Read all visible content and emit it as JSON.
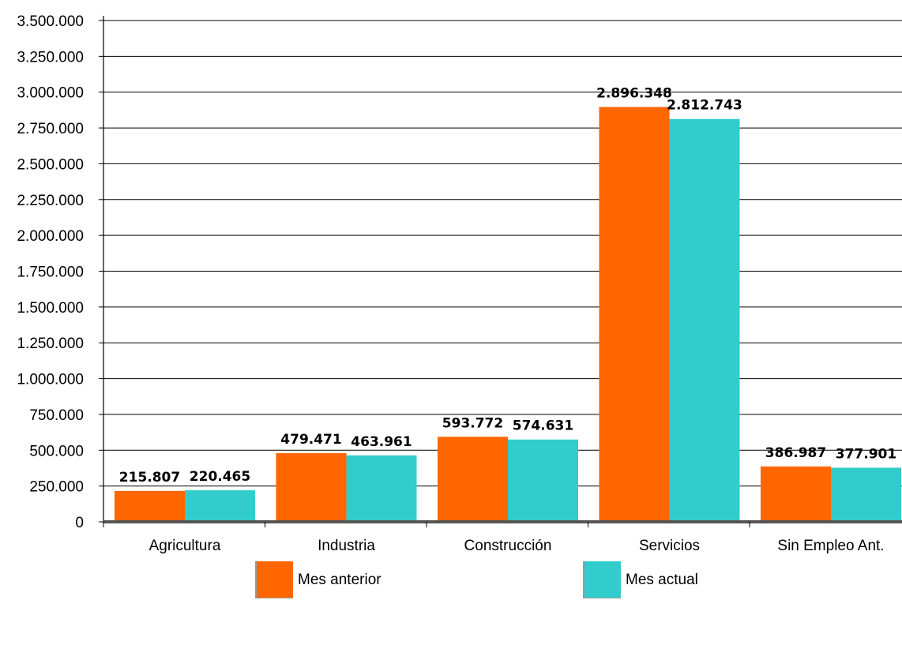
{
  "chart_data": {
    "type": "bar",
    "categories": [
      "Agricultura",
      "Industria",
      "Construcción",
      "Servicios",
      "Sin Empleo Ant."
    ],
    "series": [
      {
        "name": "Mes anterior",
        "color": "#ff6600",
        "values": [
          215807,
          479471,
          593772,
          2896348,
          386987
        ],
        "labels": [
          "215.807",
          "479.471",
          "593.772",
          "2.896.348",
          "386.987"
        ]
      },
      {
        "name": "Mes actual",
        "color": "#33cccc",
        "values": [
          220465,
          463961,
          574631,
          2812743,
          377901
        ],
        "labels": [
          "220.465",
          "463.961",
          "574.631",
          "2.812.743",
          "377.901"
        ]
      }
    ],
    "ylim": [
      0,
      3500000
    ],
    "yticks": [
      0,
      250000,
      500000,
      750000,
      1000000,
      1250000,
      1500000,
      1750000,
      2000000,
      2250000,
      2500000,
      2750000,
      3000000,
      3250000,
      3500000
    ],
    "ytick_labels": [
      "0",
      "250.000",
      "500.000",
      "750.000",
      "1.000.000",
      "1.250.000",
      "1.500.000",
      "1.750.000",
      "2.000.000",
      "2.250.000",
      "2.500.000",
      "2.750.000",
      "3.000.000",
      "3.250.000",
      "3.500.000"
    ],
    "grid": true,
    "legend": "bottom",
    "title": "",
    "xlabel": "",
    "ylabel": ""
  }
}
